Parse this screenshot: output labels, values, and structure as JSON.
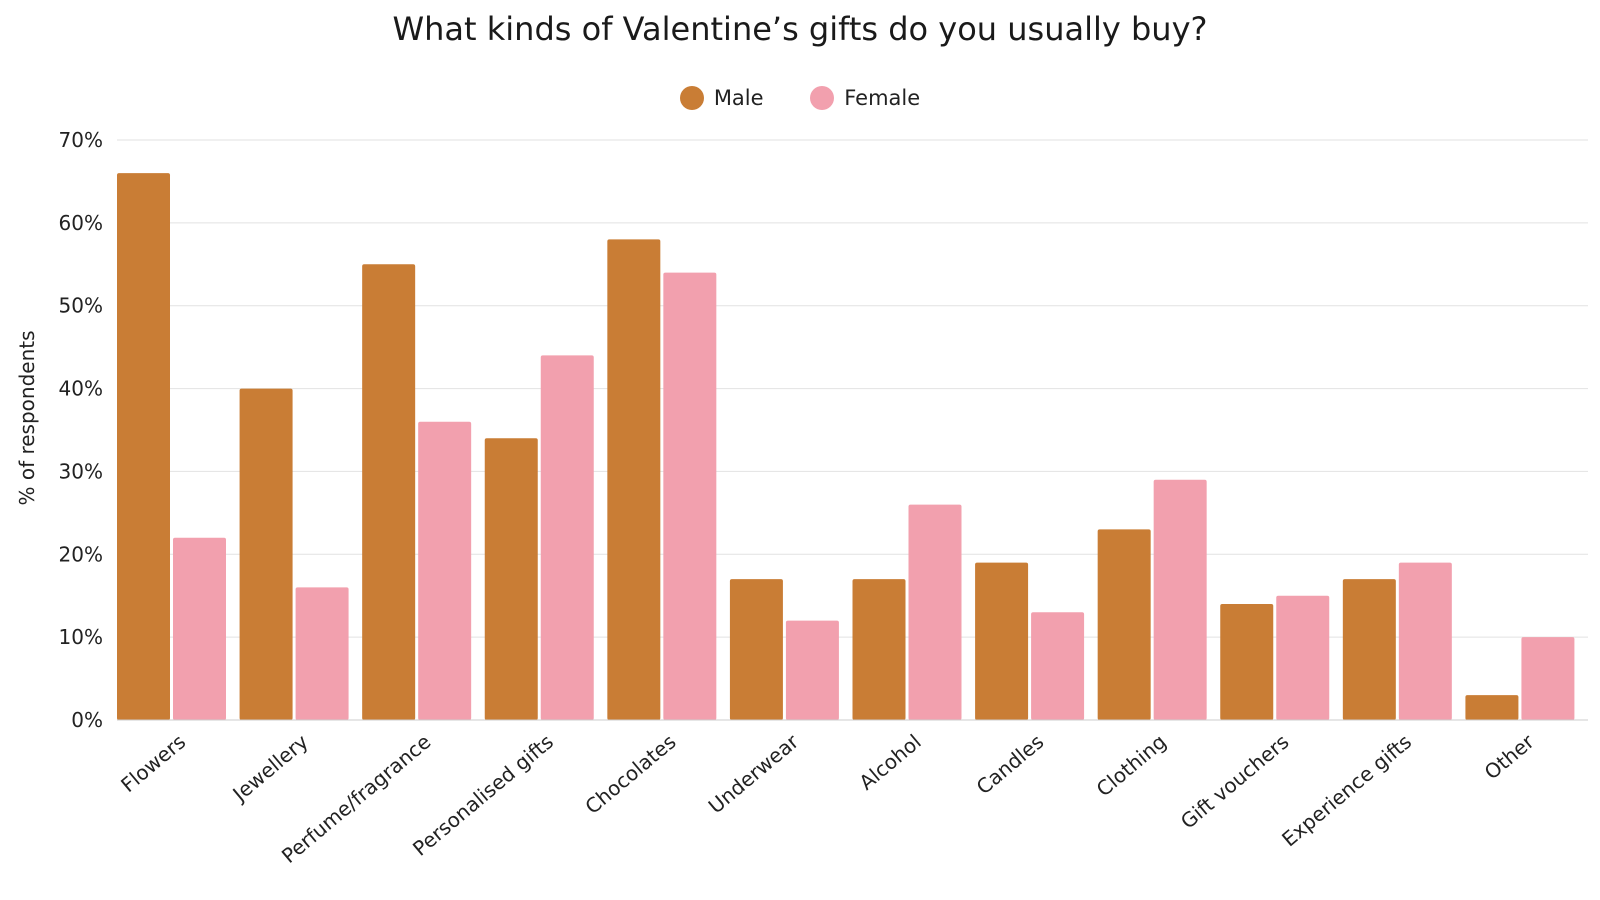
{
  "chart_data": {
    "type": "bar",
    "title": "What kinds of Valentine’s gifts do you usually buy?",
    "xlabel": "",
    "ylabel": "% of respondents",
    "ylim": [
      0,
      70
    ],
    "yticks": [
      0,
      10,
      20,
      30,
      40,
      50,
      60,
      70
    ],
    "ytick_labels": [
      "0%",
      "10%",
      "20%",
      "30%",
      "40%",
      "50%",
      "60%",
      "70%"
    ],
    "grid": true,
    "legend_position": "top-center",
    "categories": [
      "Flowers",
      "Jewellery",
      "Perfume/fragrance",
      "Personalised gifts",
      "Chocolates",
      "Underwear",
      "Alcohol",
      "Candles",
      "Clothing",
      "Gift vouchers",
      "Experience gifts",
      "Other"
    ],
    "series": [
      {
        "name": "Male",
        "color": "#c97d35",
        "values": [
          66,
          40,
          55,
          34,
          58,
          17,
          17,
          19,
          23,
          14,
          17,
          3
        ]
      },
      {
        "name": "Female",
        "color": "#f2a0ae",
        "values": [
          22,
          16,
          36,
          44,
          54,
          12,
          26,
          13,
          29,
          15,
          19,
          10
        ]
      }
    ]
  }
}
